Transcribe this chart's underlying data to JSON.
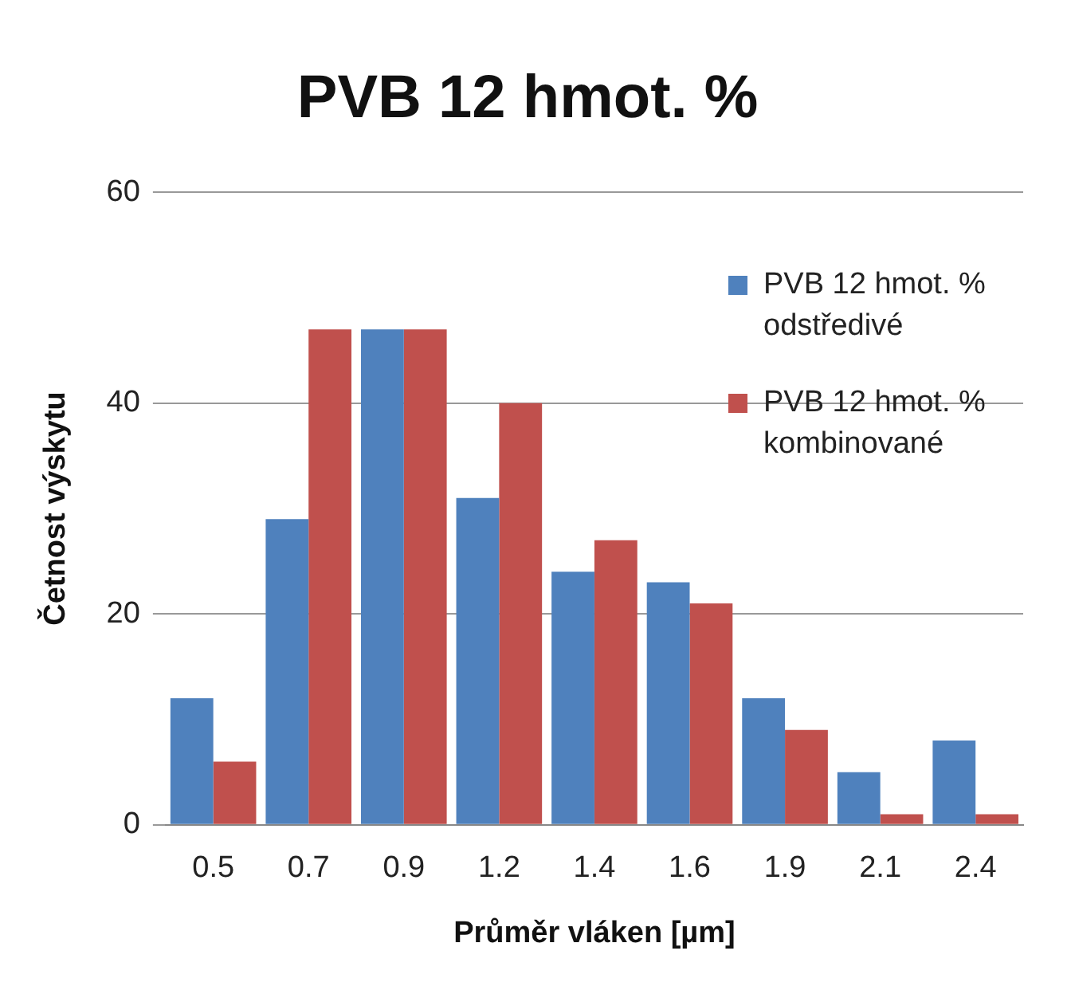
{
  "chart_data": {
    "type": "bar",
    "title": "PVB 12 hmot. %",
    "xlabel": "Průměr vláken [µm]",
    "ylabel": "Četnost výskytu",
    "categories": [
      "0.5",
      "0.7",
      "0.9",
      "1.2",
      "1.4",
      "1.6",
      "1.9",
      "2.1",
      "2.4"
    ],
    "series": [
      {
        "name": "PVB 12 hmot. % odstředivé",
        "color": "#4f81bd",
        "values": [
          12,
          29,
          47,
          31,
          24,
          23,
          12,
          5,
          8
        ]
      },
      {
        "name": "PVB 12 hmot. % kombinované",
        "color": "#c0504d",
        "values": [
          6,
          47,
          47,
          40,
          27,
          21,
          9,
          1,
          1
        ]
      }
    ],
    "ylim": [
      0,
      60
    ],
    "yticks": [
      0,
      20,
      40,
      60
    ],
    "grid": "y",
    "legend": "top right"
  }
}
